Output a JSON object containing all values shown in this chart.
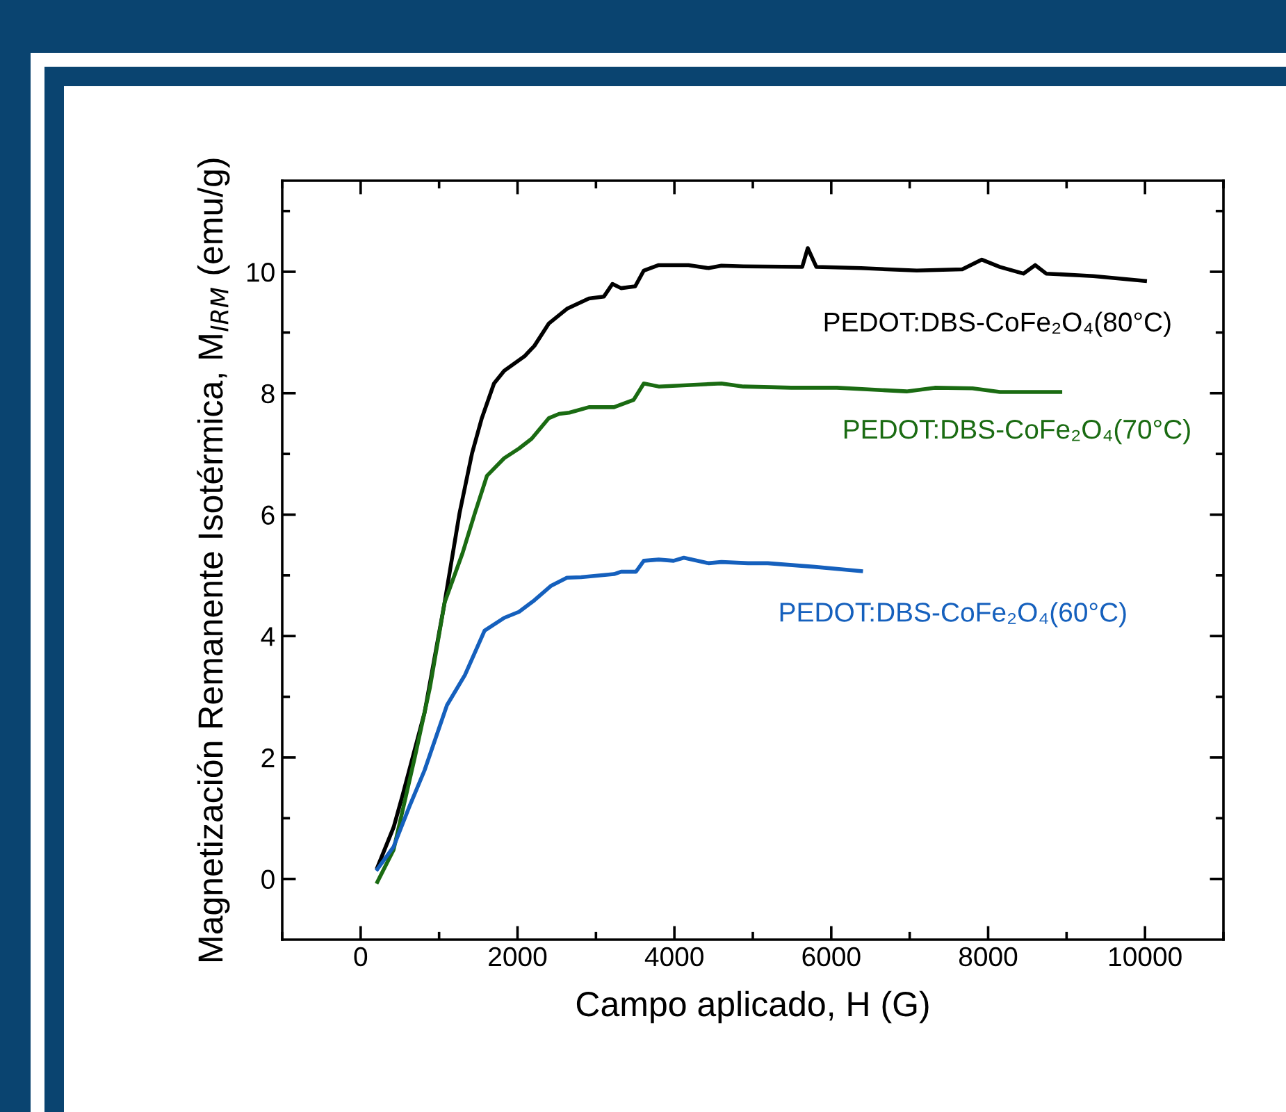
{
  "chart_data": {
    "type": "line",
    "xlabel": "Campo aplicado, H (G)",
    "ylabel": "Magnetización Remanente Isotérmica, M$_{IRM}$ (emu/g)",
    "xlim": [
      -1000,
      11000
    ],
    "xticks": [
      0,
      2000,
      4000,
      6000,
      8000,
      10000
    ],
    "ylim": [
      -1,
      11.5
    ],
    "yticks": [
      0,
      2,
      4,
      6,
      8,
      10
    ],
    "grid": false,
    "legend": "top right",
    "marker": "none",
    "line_style": "solid",
    "series": [
      {
        "name": "PEDOT:DBS-CoFe₂O₄(80°C)",
        "color": "#000000",
        "x": [
          213,
          420,
          535,
          815,
          1070,
          1260,
          1420,
          1545,
          1700,
          1830,
          2090,
          2215,
          2400,
          2630,
          2910,
          3100,
          3210,
          3320,
          3500,
          3610,
          3800,
          4180,
          4435,
          4600,
          4880,
          5630,
          5700,
          5810,
          6380,
          7090,
          7670,
          7920,
          8150,
          8450,
          8600,
          8740,
          9340,
          10000
        ],
        "values": [
          0.19,
          0.85,
          1.38,
          2.74,
          4.55,
          6.02,
          7.01,
          7.59,
          8.16,
          8.37,
          8.61,
          8.78,
          9.15,
          9.39,
          9.56,
          9.59,
          9.8,
          9.73,
          9.76,
          10.02,
          10.11,
          10.11,
          10.06,
          10.1,
          10.09,
          10.08,
          10.39,
          10.08,
          10.06,
          10.02,
          10.04,
          10.2,
          10.08,
          9.97,
          10.11,
          9.97,
          9.93,
          9.85
        ]
      },
      {
        "name": "PEDOT:DBS-CoFe₂O₄(70°C)",
        "color": "#1a6b12",
        "x": [
          213,
          420,
          690,
          883,
          1070,
          1300,
          1455,
          1610,
          1830,
          2020,
          2180,
          2400,
          2530,
          2660,
          2910,
          3230,
          3480,
          3610,
          3800,
          4600,
          4880,
          5490,
          6070,
          6960,
          7320,
          7800,
          8150,
          8920
        ],
        "values": [
          -0.05,
          0.48,
          2.0,
          3.15,
          4.55,
          5.37,
          6.02,
          6.64,
          6.93,
          7.09,
          7.25,
          7.59,
          7.66,
          7.68,
          7.77,
          7.77,
          7.89,
          8.16,
          8.11,
          8.16,
          8.11,
          8.09,
          8.09,
          8.03,
          8.09,
          8.08,
          8.02,
          8.02
        ]
      },
      {
        "name": "PEDOT:DBS-CoFe₂O₄(60°C)",
        "color": "#1560bd",
        "x": [
          213,
          420,
          630,
          815,
          1100,
          1330,
          1580,
          1830,
          2020,
          2215,
          2430,
          2630,
          2810,
          3230,
          3320,
          3510,
          3610,
          3800,
          3990,
          4120,
          4435,
          4600,
          4940,
          5190,
          5790,
          6380
        ],
        "values": [
          0.16,
          0.53,
          1.22,
          1.79,
          2.86,
          3.36,
          4.09,
          4.3,
          4.4,
          4.59,
          4.83,
          4.96,
          4.97,
          5.02,
          5.06,
          5.06,
          5.24,
          5.26,
          5.24,
          5.29,
          5.2,
          5.22,
          5.2,
          5.2,
          5.14,
          5.07
        ]
      }
    ]
  }
}
